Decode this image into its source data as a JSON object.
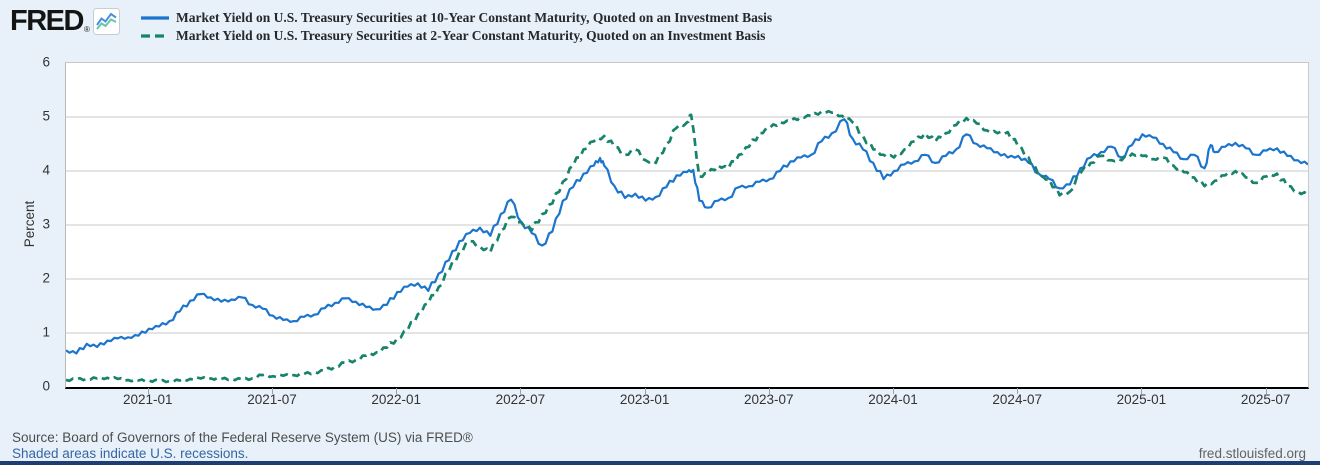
{
  "branding": {
    "logo_text": "FRED",
    "registered_mark": "®"
  },
  "y_axis_title": "Percent",
  "footer": {
    "source": "Source: Board of Governors of the Federal Reserve System (US) via FRED®",
    "recession_note": "Shaded areas indicate U.S. recessions.",
    "site": "fred.stlouisfed.org"
  },
  "chart_data": {
    "type": "line",
    "title": "",
    "xlabel": "",
    "ylabel": "Percent",
    "grid": "horizontal",
    "legend_position": "top-left",
    "ylim": [
      0,
      6
    ],
    "y_ticks": [
      0,
      1,
      2,
      3,
      4,
      5,
      6
    ],
    "x_unit": "months from left edge of axis (t); axis spans 60 months ending 2025-09",
    "x_range_months": [
      0,
      60
    ],
    "x_ticks": [
      {
        "label": "2021-01",
        "t": 4
      },
      {
        "label": "2021-07",
        "t": 10
      },
      {
        "label": "2022-01",
        "t": 16
      },
      {
        "label": "2022-07",
        "t": 22
      },
      {
        "label": "2023-01",
        "t": 28
      },
      {
        "label": "2023-07",
        "t": 34
      },
      {
        "label": "2024-01",
        "t": 40
      },
      {
        "label": "2024-07",
        "t": 46
      },
      {
        "label": "2025-01",
        "t": 52
      },
      {
        "label": "2025-07",
        "t": 58
      }
    ],
    "series": [
      {
        "name": "10-Year Treasury Constant Maturity Yield",
        "label": "Market Yield on U.S. Treasury Securities at 10-Year Constant Maturity, Quoted on an Investment Basis",
        "color": "#1b74cd",
        "dash": "solid",
        "width": 2.2,
        "points": [
          [
            0,
            0.68
          ],
          [
            0.5,
            0.62
          ],
          [
            1,
            0.8
          ],
          [
            1.5,
            0.74
          ],
          [
            2,
            0.86
          ],
          [
            2.5,
            0.9
          ],
          [
            3,
            0.92
          ],
          [
            3.5,
            0.95
          ],
          [
            4,
            1.08
          ],
          [
            4.5,
            1.12
          ],
          [
            5,
            1.22
          ],
          [
            5.5,
            1.4
          ],
          [
            6,
            1.6
          ],
          [
            6.5,
            1.72
          ],
          [
            7,
            1.66
          ],
          [
            7.5,
            1.58
          ],
          [
            8,
            1.62
          ],
          [
            8.5,
            1.66
          ],
          [
            9,
            1.52
          ],
          [
            9.5,
            1.45
          ],
          [
            10,
            1.32
          ],
          [
            10.5,
            1.24
          ],
          [
            11,
            1.22
          ],
          [
            11.5,
            1.3
          ],
          [
            12,
            1.34
          ],
          [
            12.5,
            1.46
          ],
          [
            13,
            1.56
          ],
          [
            13.5,
            1.64
          ],
          [
            14,
            1.58
          ],
          [
            14.5,
            1.48
          ],
          [
            15,
            1.44
          ],
          [
            15.5,
            1.52
          ],
          [
            16,
            1.76
          ],
          [
            16.5,
            1.86
          ],
          [
            17,
            1.92
          ],
          [
            17.5,
            1.78
          ],
          [
            18,
            2.1
          ],
          [
            18.5,
            2.35
          ],
          [
            19,
            2.7
          ],
          [
            19.5,
            2.85
          ],
          [
            20,
            2.95
          ],
          [
            20.5,
            2.8
          ],
          [
            21,
            3.2
          ],
          [
            21.5,
            3.47
          ],
          [
            22,
            3.05
          ],
          [
            22.5,
            2.85
          ],
          [
            23,
            2.62
          ],
          [
            23.5,
            2.88
          ],
          [
            24,
            3.45
          ],
          [
            24.5,
            3.7
          ],
          [
            25,
            3.95
          ],
          [
            25.5,
            4.1
          ],
          [
            25.8,
            4.24
          ],
          [
            26,
            4.1
          ],
          [
            26.5,
            3.72
          ],
          [
            27,
            3.5
          ],
          [
            27.5,
            3.58
          ],
          [
            28,
            3.45
          ],
          [
            28.5,
            3.52
          ],
          [
            29,
            3.7
          ],
          [
            29.5,
            3.92
          ],
          [
            30,
            3.98
          ],
          [
            30.3,
            4.02
          ],
          [
            30.6,
            3.45
          ],
          [
            31,
            3.32
          ],
          [
            31.5,
            3.45
          ],
          [
            32,
            3.5
          ],
          [
            32.5,
            3.7
          ],
          [
            33,
            3.72
          ],
          [
            33.5,
            3.8
          ],
          [
            34,
            3.85
          ],
          [
            34.5,
            4.0
          ],
          [
            35,
            4.18
          ],
          [
            35.5,
            4.25
          ],
          [
            36,
            4.3
          ],
          [
            36.5,
            4.55
          ],
          [
            37,
            4.7
          ],
          [
            37.6,
            4.96
          ],
          [
            38,
            4.6
          ],
          [
            38.5,
            4.4
          ],
          [
            39,
            4.15
          ],
          [
            39.5,
            3.85
          ],
          [
            40,
            4.0
          ],
          [
            40.5,
            4.12
          ],
          [
            41,
            4.18
          ],
          [
            41.5,
            4.3
          ],
          [
            42,
            4.15
          ],
          [
            42.5,
            4.28
          ],
          [
            43,
            4.4
          ],
          [
            43.5,
            4.68
          ],
          [
            44,
            4.5
          ],
          [
            44.5,
            4.42
          ],
          [
            45,
            4.35
          ],
          [
            45.5,
            4.25
          ],
          [
            46,
            4.28
          ],
          [
            46.5,
            4.15
          ],
          [
            47,
            3.95
          ],
          [
            47.5,
            3.85
          ],
          [
            48,
            3.68
          ],
          [
            48.5,
            3.75
          ],
          [
            49,
            4.05
          ],
          [
            49.5,
            4.25
          ],
          [
            50,
            4.35
          ],
          [
            50.5,
            4.45
          ],
          [
            51,
            4.25
          ],
          [
            51.5,
            4.48
          ],
          [
            52,
            4.68
          ],
          [
            52.5,
            4.62
          ],
          [
            53,
            4.5
          ],
          [
            53.5,
            4.35
          ],
          [
            54,
            4.22
          ],
          [
            54.5,
            4.3
          ],
          [
            55,
            4.05
          ],
          [
            55.3,
            4.48
          ],
          [
            55.5,
            4.35
          ],
          [
            56,
            4.45
          ],
          [
            56.5,
            4.52
          ],
          [
            57,
            4.42
          ],
          [
            57.5,
            4.3
          ],
          [
            58,
            4.38
          ],
          [
            58.5,
            4.42
          ],
          [
            59,
            4.28
          ],
          [
            59.5,
            4.2
          ],
          [
            60,
            4.12
          ]
        ]
      },
      {
        "name": "2-Year Treasury Constant Maturity Yield",
        "label": "Market Yield on U.S. Treasury Securities at 2-Year Constant Maturity, Quoted on an Investment Basis",
        "color": "#17836b",
        "dash": "8 5",
        "width": 2.7,
        "points": [
          [
            0,
            0.13
          ],
          [
            0.5,
            0.14
          ],
          [
            1,
            0.15
          ],
          [
            1.5,
            0.16
          ],
          [
            2,
            0.17
          ],
          [
            2.5,
            0.15
          ],
          [
            3,
            0.13
          ],
          [
            3.5,
            0.12
          ],
          [
            4,
            0.12
          ],
          [
            4.5,
            0.11
          ],
          [
            5,
            0.11
          ],
          [
            5.5,
            0.12
          ],
          [
            6,
            0.15
          ],
          [
            6.5,
            0.16
          ],
          [
            7,
            0.16
          ],
          [
            7.5,
            0.15
          ],
          [
            8,
            0.15
          ],
          [
            8.5,
            0.14
          ],
          [
            9,
            0.16
          ],
          [
            9.5,
            0.22
          ],
          [
            10,
            0.2
          ],
          [
            10.5,
            0.21
          ],
          [
            11,
            0.22
          ],
          [
            11.5,
            0.24
          ],
          [
            12,
            0.27
          ],
          [
            12.5,
            0.3
          ],
          [
            13,
            0.38
          ],
          [
            13.5,
            0.45
          ],
          [
            14,
            0.5
          ],
          [
            14.5,
            0.58
          ],
          [
            15,
            0.64
          ],
          [
            15.5,
            0.73
          ],
          [
            16,
            0.9
          ],
          [
            16.5,
            1.05
          ],
          [
            17,
            1.35
          ],
          [
            17.5,
            1.55
          ],
          [
            18,
            1.85
          ],
          [
            18.5,
            2.15
          ],
          [
            19,
            2.5
          ],
          [
            19.5,
            2.7
          ],
          [
            20,
            2.6
          ],
          [
            20.5,
            2.5
          ],
          [
            21,
            2.9
          ],
          [
            21.5,
            3.15
          ],
          [
            22,
            3.05
          ],
          [
            22.5,
            2.9
          ],
          [
            23,
            3.2
          ],
          [
            23.5,
            3.4
          ],
          [
            24,
            3.8
          ],
          [
            24.5,
            4.1
          ],
          [
            25,
            4.4
          ],
          [
            25.5,
            4.55
          ],
          [
            26,
            4.65
          ],
          [
            26.5,
            4.45
          ],
          [
            27,
            4.3
          ],
          [
            27.5,
            4.4
          ],
          [
            28,
            4.2
          ],
          [
            28.5,
            4.15
          ],
          [
            29,
            4.5
          ],
          [
            29.5,
            4.8
          ],
          [
            30,
            4.9
          ],
          [
            30.2,
            5.04
          ],
          [
            30.6,
            3.9
          ],
          [
            31,
            3.95
          ],
          [
            31.5,
            4.1
          ],
          [
            32,
            4.05
          ],
          [
            32.5,
            4.3
          ],
          [
            33,
            4.45
          ],
          [
            33.5,
            4.7
          ],
          [
            34,
            4.8
          ],
          [
            34.5,
            4.9
          ],
          [
            35,
            4.92
          ],
          [
            35.5,
            5.0
          ],
          [
            36,
            5.02
          ],
          [
            36.5,
            5.1
          ],
          [
            37,
            5.08
          ],
          [
            37.5,
            5.02
          ],
          [
            38,
            4.9
          ],
          [
            38.5,
            4.65
          ],
          [
            39,
            4.4
          ],
          [
            39.5,
            4.3
          ],
          [
            40,
            4.25
          ],
          [
            40.5,
            4.4
          ],
          [
            41,
            4.55
          ],
          [
            41.5,
            4.7
          ],
          [
            42,
            4.55
          ],
          [
            42.5,
            4.7
          ],
          [
            43,
            4.85
          ],
          [
            43.5,
            4.98
          ],
          [
            44,
            4.88
          ],
          [
            44.5,
            4.75
          ],
          [
            45,
            4.7
          ],
          [
            45.5,
            4.72
          ],
          [
            46,
            4.45
          ],
          [
            46.5,
            4.25
          ],
          [
            47,
            3.9
          ],
          [
            47.5,
            3.85
          ],
          [
            48,
            3.55
          ],
          [
            48.5,
            3.62
          ],
          [
            49,
            3.95
          ],
          [
            49.5,
            4.15
          ],
          [
            50,
            4.28
          ],
          [
            50.5,
            4.2
          ],
          [
            51,
            4.2
          ],
          [
            51.5,
            4.32
          ],
          [
            52,
            4.28
          ],
          [
            52.5,
            4.22
          ],
          [
            53,
            4.25
          ],
          [
            53.5,
            4.1
          ],
          [
            54,
            3.98
          ],
          [
            54.5,
            3.88
          ],
          [
            55,
            3.72
          ],
          [
            55.5,
            3.82
          ],
          [
            56,
            3.92
          ],
          [
            56.5,
            4.0
          ],
          [
            57,
            3.88
          ],
          [
            57.5,
            3.78
          ],
          [
            58,
            3.9
          ],
          [
            58.5,
            3.95
          ],
          [
            59,
            3.72
          ],
          [
            59.5,
            3.62
          ],
          [
            60,
            3.56
          ]
        ]
      }
    ],
    "colors": {
      "grid": "#c9c9c9",
      "axis": "#000000",
      "tick_label": "#333333"
    }
  }
}
